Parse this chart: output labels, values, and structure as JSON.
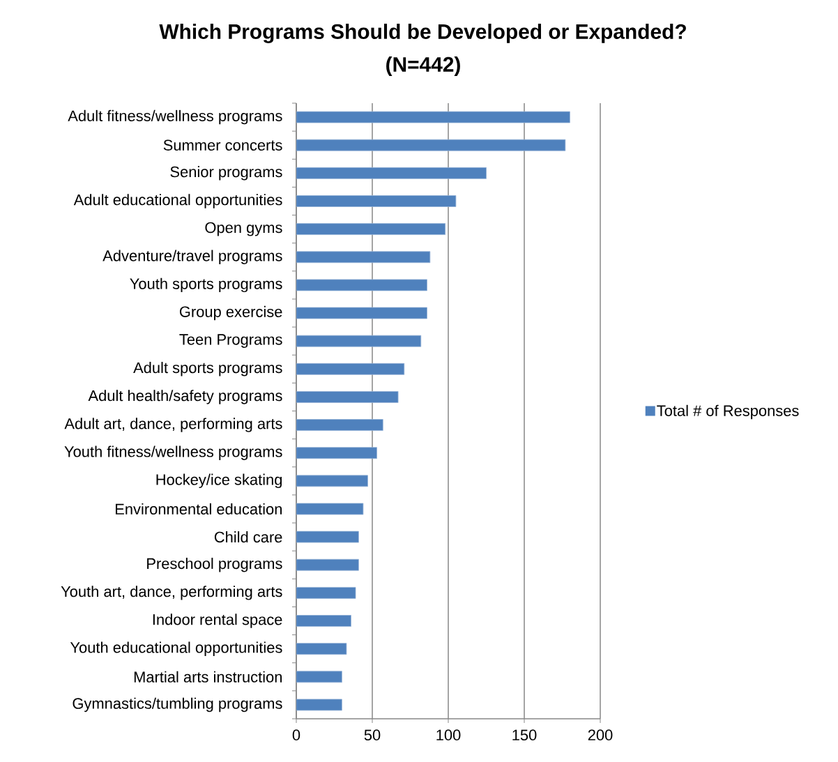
{
  "chart_data": {
    "type": "bar",
    "orientation": "horizontal",
    "title": "Which Programs Should be Developed or Expanded?",
    "subtitle": "(N=442)",
    "categories": [
      "Adult fitness/wellness programs",
      "Summer concerts",
      "Senior programs",
      "Adult educational opportunities",
      "Open gyms",
      "Adventure/travel programs",
      "Youth sports programs",
      "Group exercise",
      "Teen Programs",
      "Adult sports programs",
      "Adult health/safety programs",
      "Adult art, dance, performing arts",
      "Youth fitness/wellness programs",
      "Hockey/ice skating",
      "Environmental education",
      "Child care",
      "Preschool programs",
      "Youth art, dance, performing arts",
      "Indoor rental space",
      "Youth educational opportunities",
      "Martial arts instruction",
      "Gymnastics/tumbling programs"
    ],
    "series": [
      {
        "name": "Total # of Responses",
        "color": "#4f81bd",
        "values": [
          180,
          177,
          125,
          105,
          98,
          88,
          86,
          86,
          82,
          71,
          67,
          57,
          53,
          47,
          44,
          41,
          41,
          39,
          36,
          33,
          30,
          30
        ]
      }
    ],
    "xlim": [
      0,
      200
    ],
    "xticks": [
      0,
      50,
      100,
      150,
      200
    ],
    "grid": "x",
    "legend": "right"
  }
}
